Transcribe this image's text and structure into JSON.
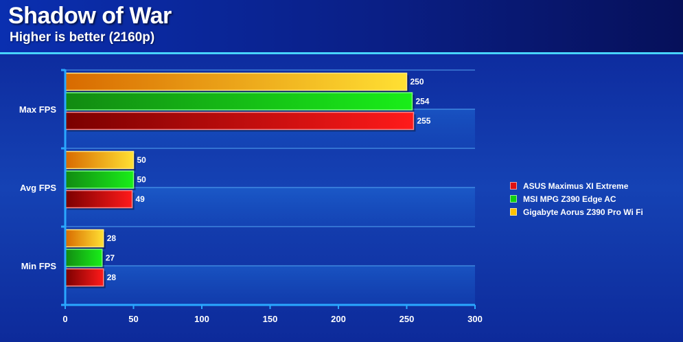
{
  "header": {
    "title": "Shadow of War",
    "subtitle": "Higher is better (2160p)"
  },
  "chart_data": {
    "type": "bar",
    "orientation": "horizontal",
    "title": "Shadow of War",
    "subtitle": "Higher is better (2160p)",
    "categories": [
      "Max FPS",
      "Avg FPS",
      "Min FPS"
    ],
    "series": [
      {
        "name": "Gigabyte Aorus Z390 Pro Wi Fi",
        "values": [
          250,
          50,
          28
        ],
        "color": "#ffc000"
      },
      {
        "name": "MSI MPG Z390 Edge AC",
        "values": [
          254,
          50,
          27
        ],
        "color": "#10d010"
      },
      {
        "name": "ASUS Maximus XI Extreme",
        "values": [
          255,
          49,
          28
        ],
        "color": "#e01010"
      }
    ],
    "xlim": [
      0,
      300
    ],
    "xticks": [
      "0",
      "50",
      "100",
      "150",
      "200",
      "250",
      "300"
    ],
    "xlabel": "",
    "ylabel": "",
    "grid": true,
    "data_labels": true,
    "legend": {
      "position": "right",
      "entries": [
        {
          "name": "ASUS Maximus XI Extreme",
          "color": "#e01010"
        },
        {
          "name": "MSI MPG Z390 Edge AC",
          "color": "#10d010"
        },
        {
          "name": "Gigabyte Aorus Z390 Pro Wi Fi",
          "color": "#ffc000"
        }
      ]
    }
  }
}
